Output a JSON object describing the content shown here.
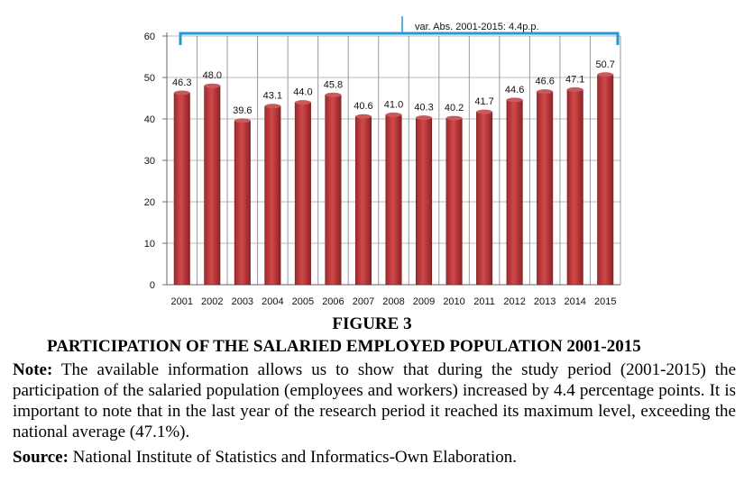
{
  "chart_data": {
    "type": "bar",
    "categories": [
      "2001",
      "2002",
      "2003",
      "2004",
      "2005",
      "2006",
      "2007",
      "2008",
      "2009",
      "2010",
      "2011",
      "2012",
      "2013",
      "2014",
      "2015"
    ],
    "values": [
      46.3,
      48.0,
      39.6,
      43.1,
      44.0,
      45.8,
      40.6,
      41.0,
      40.3,
      40.2,
      41.7,
      44.6,
      46.6,
      47.1,
      50.7
    ],
    "value_labels": [
      "46.3",
      "48.0",
      "39.6",
      "43.1",
      "44.0",
      "45.8",
      "40.6",
      "41.0",
      "40.3",
      "40.2",
      "41.7",
      "44.6",
      "46.6",
      "47.1",
      "50.7"
    ],
    "yticks": [
      "0",
      "10",
      "20",
      "30",
      "40",
      "50",
      "60"
    ],
    "ylim": [
      0,
      60
    ],
    "grid": true,
    "bar_color": "#c0393b",
    "annotation": "var. Abs. 2001-2015: 4.4p.p.",
    "annotation_color": "#1f9ad6"
  },
  "figure_number": "FIGURE 3",
  "figure_title": "PARTICIPATION OF THE SALARIED EMPLOYED POPULATION 2001-2015",
  "note_label": "Note:",
  "note_text": " The available information allows us to show that during the study period (2001-2015) the participation of the salaried population (employees and workers) increased by 4.4 percentage points. It is important to note that in the last year of the research period it reached its maximum level, exceeding the national average (47.1%).",
  "source_label": "Source:",
  "source_text": " National Institute of Statistics and Informatics-Own Elaboration."
}
